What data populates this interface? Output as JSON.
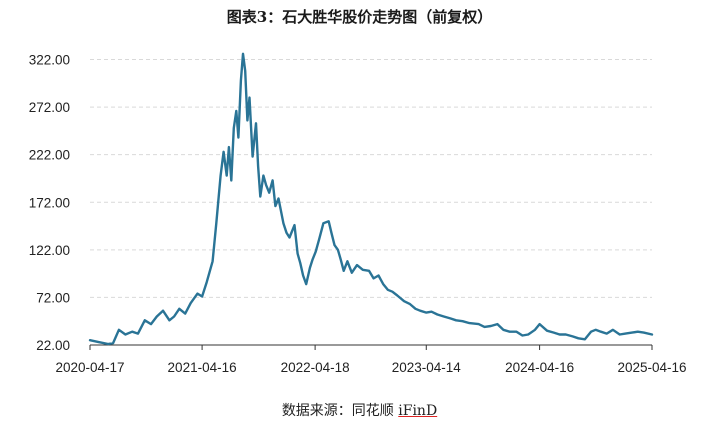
{
  "title": "图表3：石大胜华股价走势图（前复权）",
  "source_prefix": "数据来源：同花顺 ",
  "source_brand": "iFinD",
  "chart_data": {
    "type": "line",
    "title": "图表3：石大胜华股价走势图（前复权）",
    "xlabel": "",
    "ylabel": "",
    "x_range": [
      "2020-04-17",
      "2025-04-16"
    ],
    "x_ticks": [
      "2020-04-17",
      "2021-04-16",
      "2022-04-18",
      "2023-04-14",
      "2024-04-16",
      "2025-04-16"
    ],
    "y_ticks": [
      "22.00",
      "72.00",
      "122.00",
      "172.00",
      "222.00",
      "272.00",
      "322.00"
    ],
    "ylim": [
      22,
      332
    ],
    "grid": "horizontal-dashed",
    "line_color": "#2a7496",
    "series": [
      {
        "x": [
          "2020-04-17",
          "2020-05-15",
          "2020-06-15",
          "2020-07-01",
          "2020-07-20",
          "2020-08-10",
          "2020-09-01",
          "2020-09-20",
          "2020-10-12",
          "2020-11-01",
          "2020-11-20",
          "2020-12-10",
          "2020-12-31",
          "2021-01-15",
          "2021-02-01",
          "2021-02-20",
          "2021-03-10",
          "2021-04-01",
          "2021-04-16",
          "2021-05-01",
          "2021-05-20",
          "2021-06-01",
          "2021-06-15",
          "2021-06-25",
          "2021-07-05",
          "2021-07-12",
          "2021-07-20",
          "2021-07-28",
          "2021-08-05",
          "2021-08-12",
          "2021-08-20",
          "2021-08-27",
          "2021-09-03",
          "2021-09-10",
          "2021-09-17",
          "2021-09-27",
          "2021-10-08",
          "2021-10-15",
          "2021-10-22",
          "2021-11-01",
          "2021-11-10",
          "2021-11-20",
          "2021-12-01",
          "2021-12-10",
          "2021-12-20",
          "2022-01-05",
          "2022-01-15",
          "2022-01-25",
          "2022-02-10",
          "2022-02-20",
          "2022-03-01",
          "2022-03-10",
          "2022-03-20",
          "2022-04-01",
          "2022-04-10",
          "2022-04-20",
          "2022-05-01",
          "2022-05-15",
          "2022-06-01",
          "2022-06-10",
          "2022-06-20",
          "2022-07-01",
          "2022-07-10",
          "2022-07-20",
          "2022-08-01",
          "2022-08-15",
          "2022-09-01",
          "2022-09-20",
          "2022-10-10",
          "2022-10-25",
          "2022-11-10",
          "2022-11-25",
          "2022-12-10",
          "2022-12-25",
          "2023-01-10",
          "2023-02-01",
          "2023-02-20",
          "2023-03-10",
          "2023-03-25",
          "2023-04-14",
          "2023-05-01",
          "2023-05-20",
          "2023-06-10",
          "2023-07-01",
          "2023-07-20",
          "2023-08-10",
          "2023-09-01",
          "2023-10-01",
          "2023-10-20",
          "2023-11-10",
          "2023-12-01",
          "2023-12-20",
          "2024-01-10",
          "2024-02-01",
          "2024-02-20",
          "2024-03-10",
          "2024-04-01",
          "2024-04-16",
          "2024-05-10",
          "2024-06-01",
          "2024-06-20",
          "2024-07-10",
          "2024-08-01",
          "2024-08-20",
          "2024-09-10",
          "2024-09-30",
          "2024-10-15",
          "2024-11-01",
          "2024-11-20",
          "2024-12-10",
          "2025-01-01",
          "2025-01-20",
          "2025-02-10",
          "2025-03-01",
          "2025-03-20",
          "2025-04-16"
        ],
        "values": [
          27,
          25,
          23,
          24,
          38,
          33,
          36,
          34,
          48,
          44,
          52,
          58,
          48,
          52,
          60,
          55,
          66,
          76,
          73,
          88,
          110,
          150,
          200,
          225,
          200,
          230,
          195,
          250,
          268,
          240,
          300,
          328,
          310,
          258,
          282,
          220,
          255,
          210,
          178,
          200,
          190,
          182,
          195,
          168,
          176,
          150,
          140,
          135,
          148,
          118,
          108,
          95,
          86,
          103,
          112,
          120,
          133,
          150,
          152,
          140,
          127,
          122,
          112,
          100,
          110,
          98,
          106,
          101,
          100,
          92,
          95,
          86,
          80,
          78,
          74,
          68,
          65,
          60,
          58,
          56,
          57,
          54,
          52,
          50,
          48,
          47,
          45,
          44,
          41,
          42,
          44,
          38,
          36,
          36,
          32,
          33,
          38,
          44,
          37,
          35,
          33,
          33,
          31,
          29,
          28,
          36,
          38,
          36,
          34,
          38,
          33,
          34,
          35,
          36,
          35,
          33
        ]
      }
    ]
  }
}
